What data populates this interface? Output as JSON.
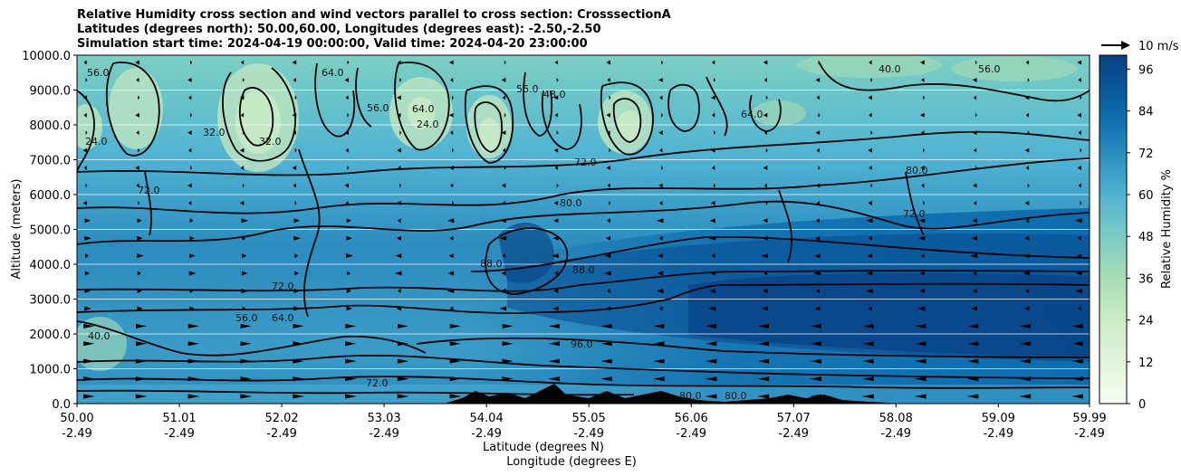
{
  "chart_data": {
    "type": "heatmap",
    "title_lines": [
      "Relative Humidity cross section and wind vectors parallel to cross section: CrosssectionA",
      "Latitudes (degrees north): 50.00,60.00, Longitudes (degrees east): -2.50,-2.50",
      "Simulation start time: 2024-04-19 00:00:00, Valid time: 2024-04-20 23:00:00"
    ],
    "ylabel": "Altitude (meters)",
    "xlabel_lines": [
      "Latitude (degrees N)",
      "Longitude (degrees E)"
    ],
    "ylim": [
      0,
      10000
    ],
    "y_ticks": [
      "0.0",
      "1000.0",
      "2000.0",
      "3000.0",
      "4000.0",
      "5000.0",
      "6000.0",
      "7000.0",
      "8000.0",
      "9000.0",
      "10000.0"
    ],
    "x_ticks": [
      {
        "lat": "50.00",
        "lon": "-2.49"
      },
      {
        "lat": "51.01",
        "lon": "-2.49"
      },
      {
        "lat": "52.02",
        "lon": "-2.49"
      },
      {
        "lat": "53.03",
        "lon": "-2.49"
      },
      {
        "lat": "54.04",
        "lon": "-2.49"
      },
      {
        "lat": "55.05",
        "lon": "-2.49"
      },
      {
        "lat": "56.06",
        "lon": "-2.49"
      },
      {
        "lat": "57.07",
        "lon": "-2.49"
      },
      {
        "lat": "58.08",
        "lon": "-2.49"
      },
      {
        "lat": "59.09",
        "lon": "-2.49"
      },
      {
        "lat": "59.99",
        "lon": "-2.49"
      }
    ],
    "colorbar": {
      "label": "Relative Humidity %",
      "range": [
        0,
        100
      ],
      "ticks": [
        "0",
        "12",
        "24",
        "36",
        "48",
        "60",
        "72",
        "84",
        "96"
      ],
      "colors": [
        "#f7fcf0",
        "#e0f3db",
        "#ccebc5",
        "#a8ddb5",
        "#7bccc4",
        "#4eb3d3",
        "#2b8cbe",
        "#0868ac",
        "#084081"
      ]
    },
    "quiver_key": "10 m/s",
    "contour_labels": [
      "24.0",
      "32.0",
      "40.0",
      "48.0",
      "56.0",
      "64.0",
      "72.0",
      "80.0",
      "88.0",
      "96.0"
    ]
  }
}
